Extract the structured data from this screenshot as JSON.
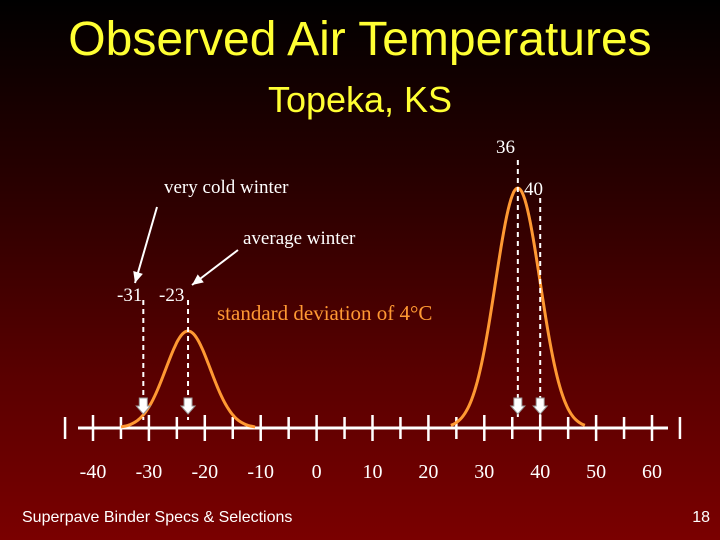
{
  "title": "Observed Air Temperatures",
  "subtitle": "Topeka, KS",
  "annotations": {
    "very_cold_winter": "very cold winter",
    "average_winter": "average winter",
    "std_dev_note": "standard deviation of 4°C",
    "cold_low": "-31",
    "cold_mean": "-23",
    "hot_mean": "36",
    "hot_high": "40"
  },
  "footer": {
    "left": "Superpave Binder Specs & Selections",
    "page_number": "18"
  },
  "colors": {
    "title": "#ffff33",
    "curve": "#ff9933",
    "axis": "#ffffff",
    "note": "#ff9933"
  },
  "chart_data": {
    "type": "line",
    "title": "",
    "xlabel": "",
    "ylabel": "",
    "x_ticks": [
      "-40",
      "-30",
      "-20",
      "-10",
      "0",
      "10",
      "20",
      "30",
      "40",
      "50",
      "60"
    ],
    "xlim": [
      -40,
      60
    ],
    "series": [
      {
        "name": "average winter",
        "mean": -23,
        "std_dev": 4
      },
      {
        "mean": 36,
        "std_dev": 4
      }
    ],
    "markers": [
      -31,
      -23,
      36,
      40
    ]
  }
}
